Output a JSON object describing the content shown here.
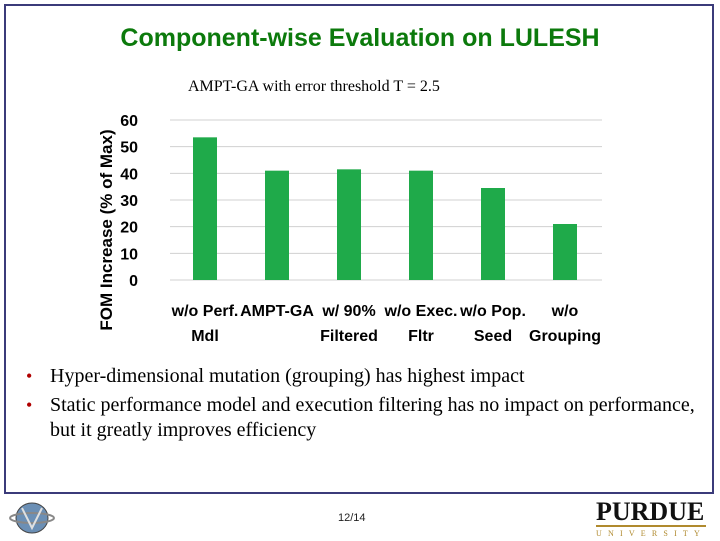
{
  "slide": {
    "title": "Component-wise Evaluation on LULESH",
    "page_number": "12/14",
    "bullets": [
      "Hyper-dimensional mutation (grouping) has highest impact",
      "Static performance model and execution filtering has no impact on performance, but it greatly improves efficiency"
    ],
    "logo_right_word": "PURDUE",
    "logo_right_sub": "UNIVERSITY"
  },
  "colors": {
    "title": "#0c7a0c",
    "bar": "#1faa4a",
    "bullet": "#b00000",
    "gold": "#b08a2e"
  },
  "chart_data": {
    "type": "bar",
    "title": "AMPT-GA with error threshold T = 2.5",
    "ylabel": "FOM Increase (% of Max)",
    "xlabel": "",
    "ylim": [
      0,
      60
    ],
    "yticks": [
      "60",
      "50",
      "40",
      "30",
      "20",
      "10",
      "0"
    ],
    "categories": [
      [
        "w/o Perf.",
        "Mdl"
      ],
      [
        "AMPT-GA",
        ""
      ],
      [
        "w/ 90%",
        "Filtered"
      ],
      [
        "w/o Exec.",
        "Fltr"
      ],
      [
        "w/o Pop.",
        "Seed"
      ],
      [
        "w/o",
        "Grouping"
      ]
    ],
    "values": [
      53.5,
      41,
      41.5,
      41,
      34.5,
      21
    ],
    "grid": true,
    "legend": "none"
  }
}
